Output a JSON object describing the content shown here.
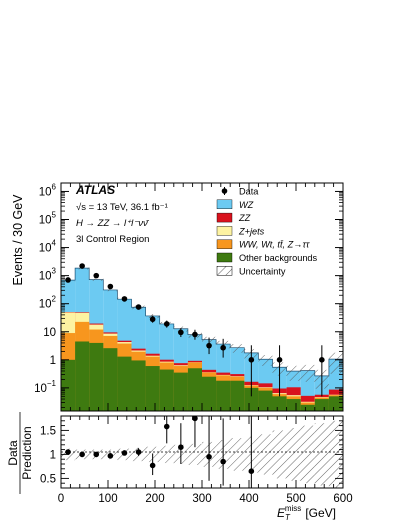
{
  "chart_data": {
    "type": "stacked-histogram",
    "x": {
      "label_main": "E",
      "label_sub": "T",
      "label_sup": "miss",
      "label_unit": "[GeV]",
      "range": [
        0,
        600
      ],
      "ticks": [
        0,
        100,
        200,
        300,
        400,
        500,
        600
      ],
      "bin_width": 30
    },
    "y": {
      "label": "Events / 30 GeV",
      "scale": "log",
      "range": [
        0.015,
        2000000
      ],
      "ticks": [
        {
          "value": 0.1,
          "base": "10",
          "exp": "−1"
        },
        {
          "value": 1,
          "base": "1",
          "exp": ""
        },
        {
          "value": 10,
          "base": "10",
          "exp": ""
        },
        {
          "value": 100,
          "base": "10",
          "exp": "2"
        },
        {
          "value": 1000,
          "base": "10",
          "exp": "3"
        },
        {
          "value": 10000,
          "base": "10",
          "exp": "4"
        },
        {
          "value": 100000,
          "base": "10",
          "exp": "5"
        },
        {
          "value": 1000000,
          "base": "10",
          "exp": "6"
        }
      ]
    },
    "annotations": {
      "experiment": "ATLAS",
      "energy": "√s = 13 TeV, 36.1 fb⁻¹",
      "process": "H → ZZ → l⁺l⁻νν̄",
      "region": "3l Control Region"
    },
    "bin_edges": [
      0,
      30,
      60,
      90,
      120,
      150,
      180,
      210,
      240,
      270,
      300,
      330,
      360,
      390,
      420,
      450,
      480,
      510,
      540,
      570,
      600
    ],
    "stack": [
      {
        "name": "Other backgrounds",
        "color": "#3e7a10",
        "values": [
          1.0,
          4.5,
          4.0,
          2.6,
          1.3,
          0.95,
          0.6,
          0.45,
          0.35,
          0.5,
          0.25,
          0.18,
          0.18,
          0.1,
          0.08,
          0.05,
          0.04,
          0.025,
          0.04,
          0.05
        ]
      },
      {
        "name": "WW, Wt, tt̄, Z→ττ",
        "color": "#f7961e",
        "values": [
          8,
          18,
          8,
          4.5,
          2.5,
          1.0,
          0.7,
          0.35,
          0.25,
          0.3,
          0.1,
          0.1,
          0.07,
          0.02,
          0.02,
          0.01,
          0.01,
          0.005,
          0.005,
          0.005
        ]
      },
      {
        "name": "Z+jets",
        "color": "#fdf3a2",
        "values": [
          40,
          25,
          6,
          1.5,
          0.5,
          0.2,
          0.1,
          0.06,
          0.04,
          0.02,
          0.01,
          0.01,
          0.01,
          0.005,
          0.005,
          0.005,
          0.005,
          0.002,
          0.002,
          0.002
        ]
      },
      {
        "name": "ZZ",
        "color": "#d9121d",
        "values": [
          1.5,
          2.2,
          1.6,
          0.9,
          0.5,
          0.35,
          0.25,
          0.15,
          0.12,
          0.1,
          0.08,
          0.06,
          0.05,
          0.04,
          0.04,
          0.03,
          0.05,
          0.02,
          0.01,
          0.03
        ]
      },
      {
        "name": "WZ",
        "color": "#6ccaf2",
        "values": [
          640,
          1800,
          700,
          300,
          140,
          72,
          35,
          18,
          12,
          7,
          4.8,
          3.3,
          2.4,
          1.6,
          0.9,
          0.45,
          0.29,
          0.36,
          0.21,
          0.97
        ]
      }
    ],
    "uncertainty_frac": [
      0.12,
      0.1,
      0.1,
      0.1,
      0.12,
      0.14,
      0.16,
      0.18,
      0.2,
      0.22,
      0.26,
      0.3,
      0.34,
      0.38,
      0.42,
      0.5,
      0.55,
      0.6,
      0.65,
      0.7
    ],
    "data": [
      {
        "x": 15,
        "y": 700,
        "lo": 0,
        "hi": 0
      },
      {
        "x": 45,
        "y": 2200,
        "lo": 0,
        "hi": 0
      },
      {
        "x": 75,
        "y": 1000,
        "lo": 0,
        "hi": 0
      },
      {
        "x": 105,
        "y": 410,
        "lo": 0,
        "hi": 0
      },
      {
        "x": 135,
        "y": 148,
        "lo": 0,
        "hi": 0
      },
      {
        "x": 165,
        "y": 76,
        "lo": 0,
        "hi": 0
      },
      {
        "x": 195,
        "y": 28,
        "lo": 7,
        "hi": 10
      },
      {
        "x": 225,
        "y": 19,
        "lo": 5,
        "hi": 6
      },
      {
        "x": 255,
        "y": 9.5,
        "lo": 3,
        "hi": 4
      },
      {
        "x": 285,
        "y": 8,
        "lo": 2.8,
        "hi": 3.8
      },
      {
        "x": 315,
        "y": 3.2,
        "lo": 1.6,
        "hi": 3.0
      },
      {
        "x": 345,
        "y": 2.7,
        "lo": 1.5,
        "hi": 2.9
      },
      {
        "x": 405,
        "y": 1.0,
        "lo": 0.95,
        "hi": 2.3
      },
      {
        "x": 465,
        "y": 1.0,
        "lo": 0.95,
        "hi": 2.3
      },
      {
        "x": 555,
        "y": 1.0,
        "lo": 0.95,
        "hi": 2.3
      }
    ],
    "legend": {
      "placement": "top-right",
      "entries": [
        {
          "label": "Data",
          "kind": "marker"
        },
        {
          "label": "WZ",
          "kind": "box",
          "color": "#6ccaf2",
          "italic": true
        },
        {
          "label": "ZZ",
          "kind": "box",
          "color": "#d9121d",
          "italic": true
        },
        {
          "label": "Z+jets",
          "kind": "box",
          "color": "#fdf3a2",
          "italic": true
        },
        {
          "label": "WW, Wt, tt̄, Z→ττ",
          "kind": "box",
          "color": "#f7961e",
          "italic": true
        },
        {
          "label": "Other backgrounds",
          "kind": "box",
          "color": "#3e7a10",
          "italic": false
        },
        {
          "label": "Uncertainty",
          "kind": "hatch",
          "italic": false
        }
      ]
    },
    "ratio": {
      "ylabel_top": "Data",
      "ylabel_bottom": "Prediction",
      "range": [
        0.3,
        1.8
      ],
      "ticks": [
        {
          "value": 0.5,
          "label": "0.5"
        },
        {
          "value": 1.0,
          "label": "1"
        },
        {
          "value": 1.5,
          "label": "1.5"
        }
      ],
      "points": [
        {
          "x": 15,
          "y": 1.05,
          "lo": 0,
          "hi": 0
        },
        {
          "x": 45,
          "y": 1.0,
          "lo": 0,
          "hi": 0
        },
        {
          "x": 75,
          "y": 1.0,
          "lo": 0,
          "hi": 0
        },
        {
          "x": 105,
          "y": 0.97,
          "lo": 0,
          "hi": 0
        },
        {
          "x": 135,
          "y": 1.03,
          "lo": 0,
          "hi": 0
        },
        {
          "x": 165,
          "y": 1.05,
          "lo": 0.08,
          "hi": 0.08
        },
        {
          "x": 195,
          "y": 0.77,
          "lo": 0.2,
          "hi": 0.25
        },
        {
          "x": 225,
          "y": 1.58,
          "lo": 0.35,
          "hi": 0.4
        },
        {
          "x": 255,
          "y": 1.15,
          "lo": 0.35,
          "hi": 0.5
        },
        {
          "x": 285,
          "y": 1.75,
          "lo": 0.6,
          "hi": 0.7
        },
        {
          "x": 315,
          "y": 0.95,
          "lo": 0.5,
          "hi": 0.9
        },
        {
          "x": 345,
          "y": 0.85,
          "lo": 0.5,
          "hi": 0.9
        },
        {
          "x": 405,
          "y": 0.65,
          "lo": 0.6,
          "hi": 1.2
        }
      ]
    }
  }
}
